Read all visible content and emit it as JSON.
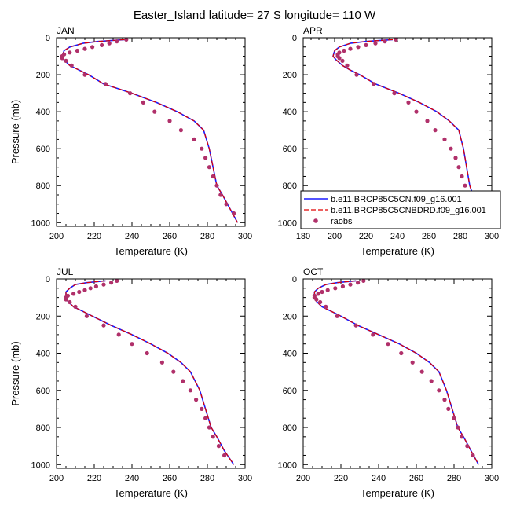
{
  "figure": {
    "title": "Easter_Island  latitude= 27 S longitude= 110 W"
  },
  "colors": {
    "model_cn": "#1a1aff",
    "model_cnbdrd": "#e00000",
    "raobs": "#b0306a",
    "axis": "#000000"
  },
  "chart_data": [
    {
      "type": "line",
      "panel": "JAN",
      "xlabel": "Temperature (K)",
      "ylabel": "Pressure (mb)",
      "xlim": [
        200,
        300
      ],
      "ylim": [
        1020,
        0
      ],
      "xticks": [
        200,
        220,
        240,
        260,
        280,
        300
      ],
      "yticks": [
        0,
        200,
        400,
        600,
        800,
        1000
      ],
      "series": [
        {
          "name": "b.e11.BRCP85C5CN.f09_g16.001",
          "kind": "line",
          "x": [
            236,
            222,
            214,
            207,
            204,
            203,
            204,
            207,
            212,
            217,
            225,
            240,
            253,
            264,
            273,
            278,
            281,
            283,
            285,
            288,
            292,
            296
          ],
          "y": [
            10,
            20,
            30,
            50,
            70,
            100,
            120,
            150,
            175,
            200,
            250,
            300,
            350,
            400,
            450,
            500,
            600,
            700,
            800,
            850,
            925,
            1000
          ]
        },
        {
          "name": "b.e11.BRCP85C5CNBDRD.f09_g16.001",
          "kind": "line",
          "x": [
            236,
            222,
            214,
            207,
            204,
            203,
            204,
            207,
            212,
            217,
            225,
            240,
            253,
            264,
            273,
            278,
            281,
            283,
            285,
            288,
            292,
            296
          ],
          "y": [
            10,
            20,
            30,
            50,
            70,
            100,
            120,
            150,
            175,
            200,
            250,
            300,
            350,
            400,
            450,
            500,
            600,
            700,
            800,
            850,
            925,
            1000
          ]
        },
        {
          "name": "raobs",
          "kind": "points",
          "x": [
            237,
            232,
            228,
            224,
            219,
            215,
            211,
            207,
            204,
            203,
            203,
            205,
            208,
            215,
            226,
            239,
            246,
            252,
            260,
            266,
            273,
            277,
            279,
            281,
            283,
            285,
            287,
            290,
            294
          ],
          "y": [
            10,
            20,
            30,
            40,
            50,
            60,
            70,
            80,
            90,
            100,
            110,
            125,
            150,
            200,
            250,
            300,
            350,
            400,
            450,
            500,
            550,
            600,
            650,
            700,
            750,
            800,
            850,
            900,
            950
          ]
        }
      ]
    },
    {
      "type": "line",
      "panel": "APR",
      "xlabel": "Temperature (K)",
      "ylabel": "",
      "xlim": [
        180,
        300
      ],
      "ylim": [
        1020,
        0
      ],
      "xticks": [
        180,
        200,
        220,
        240,
        260,
        280,
        300
      ],
      "yticks": [
        0,
        200,
        400,
        600,
        800,
        1000
      ],
      "legend": {
        "placement": "lower-right",
        "entries": [
          "b.e11.BRCP85C5CN.f09_g16.001",
          "b.e11.BRCP85C5CNBDRD.f09_g16.001",
          "raobs"
        ]
      },
      "series": [
        {
          "name": "b.e11.BRCP85C5CN.f09_g16.001",
          "kind": "line",
          "x": [
            237,
            220,
            210,
            203,
            200,
            199,
            201,
            205,
            210,
            216,
            226,
            241,
            254,
            265,
            273,
            279,
            282,
            284,
            286,
            288,
            292,
            297
          ],
          "y": [
            10,
            20,
            30,
            50,
            70,
            100,
            120,
            150,
            175,
            200,
            250,
            300,
            350,
            400,
            450,
            500,
            600,
            700,
            800,
            850,
            925,
            1000
          ]
        },
        {
          "name": "b.e11.BRCP85C5CNBDRD.f09_g16.001",
          "kind": "line",
          "x": [
            237,
            220,
            210,
            203,
            200,
            199,
            201,
            205,
            210,
            216,
            226,
            241,
            254,
            265,
            273,
            279,
            282,
            284,
            286,
            288,
            292,
            297
          ],
          "y": [
            10,
            20,
            30,
            50,
            70,
            100,
            120,
            150,
            175,
            200,
            250,
            300,
            350,
            400,
            450,
            500,
            600,
            700,
            800,
            850,
            925,
            1000
          ]
        },
        {
          "name": "raobs",
          "kind": "points",
          "x": [
            239,
            232,
            226,
            220,
            215,
            210,
            206,
            203,
            202,
            202,
            203,
            205,
            208,
            214,
            225,
            238,
            247,
            252,
            259,
            264,
            270,
            274,
            277,
            279,
            281,
            283,
            286,
            289,
            292
          ],
          "y": [
            10,
            20,
            30,
            40,
            50,
            60,
            70,
            80,
            90,
            100,
            110,
            125,
            150,
            200,
            250,
            300,
            350,
            400,
            450,
            500,
            550,
            600,
            650,
            700,
            750,
            800,
            850,
            900,
            950
          ]
        }
      ]
    },
    {
      "type": "line",
      "panel": "JUL",
      "xlabel": "Temperature (K)",
      "ylabel": "Pressure (mb)",
      "xlim": [
        200,
        300
      ],
      "ylim": [
        1020,
        0
      ],
      "xticks": [
        200,
        220,
        240,
        260,
        280,
        300
      ],
      "yticks": [
        0,
        200,
        400,
        600,
        800,
        1000
      ],
      "series": [
        {
          "name": "b.e11.BRCP85C5CN.f09_g16.001",
          "kind": "line",
          "x": [
            226,
            216,
            210,
            207,
            205,
            205,
            206,
            209,
            214,
            219,
            229,
            240,
            250,
            259,
            266,
            271,
            276,
            279,
            282,
            285,
            289,
            294
          ],
          "y": [
            10,
            20,
            30,
            50,
            70,
            100,
            120,
            150,
            175,
            200,
            250,
            300,
            350,
            400,
            450,
            500,
            600,
            700,
            800,
            850,
            925,
            1000
          ]
        },
        {
          "name": "b.e11.BRCP85C5CNBDRD.f09_g16.001",
          "kind": "line",
          "x": [
            226,
            216,
            210,
            207,
            205,
            205,
            206,
            209,
            214,
            219,
            229,
            240,
            250,
            259,
            266,
            271,
            276,
            279,
            282,
            285,
            289,
            294
          ],
          "y": [
            10,
            20,
            30,
            50,
            70,
            100,
            120,
            150,
            175,
            200,
            250,
            300,
            350,
            400,
            450,
            500,
            600,
            700,
            800,
            850,
            925,
            1000
          ]
        },
        {
          "name": "raobs",
          "kind": "points",
          "x": [
            232,
            229,
            225,
            221,
            218,
            215,
            212,
            209,
            206,
            205,
            205,
            207,
            210,
            216,
            225,
            233,
            240,
            248,
            256,
            262,
            267,
            271,
            274,
            277,
            279,
            281,
            283,
            286,
            289
          ],
          "y": [
            10,
            20,
            30,
            40,
            50,
            60,
            70,
            80,
            90,
            100,
            110,
            125,
            150,
            200,
            250,
            300,
            350,
            400,
            450,
            500,
            550,
            600,
            650,
            700,
            750,
            800,
            850,
            900,
            950
          ]
        }
      ]
    },
    {
      "type": "line",
      "panel": "OCT",
      "xlabel": "Temperature (K)",
      "ylabel": "",
      "xlim": [
        200,
        300
      ],
      "ylim": [
        1020,
        0
      ],
      "xticks": [
        200,
        220,
        240,
        260,
        280,
        300
      ],
      "yticks": [
        0,
        200,
        400,
        600,
        800,
        1000
      ],
      "series": [
        {
          "name": "b.e11.BRCP85C5CN.f09_g16.001",
          "kind": "line",
          "x": [
            228,
            218,
            212,
            208,
            206,
            206,
            207,
            210,
            215,
            220,
            229,
            240,
            251,
            260,
            267,
            272,
            276,
            279,
            282,
            285,
            289,
            293
          ],
          "y": [
            10,
            20,
            30,
            50,
            70,
            100,
            120,
            150,
            175,
            200,
            250,
            300,
            350,
            400,
            450,
            500,
            600,
            700,
            800,
            850,
            925,
            1000
          ]
        },
        {
          "name": "b.e11.BRCP85C5CNBDRD.f09_g16.001",
          "kind": "line",
          "x": [
            228,
            218,
            212,
            208,
            206,
            206,
            207,
            210,
            215,
            220,
            229,
            240,
            251,
            260,
            267,
            272,
            276,
            279,
            282,
            285,
            289,
            293
          ],
          "y": [
            10,
            20,
            30,
            50,
            70,
            100,
            120,
            150,
            175,
            200,
            250,
            300,
            350,
            400,
            450,
            500,
            600,
            700,
            800,
            850,
            925,
            1000
          ]
        },
        {
          "name": "raobs",
          "kind": "points",
          "x": [
            232,
            229,
            225,
            221,
            217,
            213,
            210,
            208,
            206,
            206,
            207,
            209,
            212,
            218,
            228,
            237,
            245,
            252,
            258,
            263,
            268,
            272,
            275,
            277,
            280,
            282,
            284,
            287,
            290
          ],
          "y": [
            10,
            20,
            30,
            40,
            50,
            60,
            70,
            80,
            90,
            100,
            110,
            125,
            150,
            200,
            250,
            300,
            350,
            400,
            450,
            500,
            550,
            600,
            650,
            700,
            750,
            800,
            850,
            900,
            950
          ]
        }
      ]
    }
  ]
}
